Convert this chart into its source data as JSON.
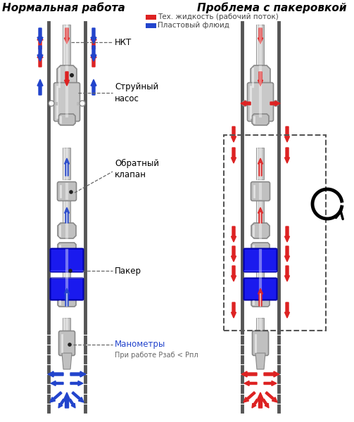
{
  "title_left": "Нормальная работа",
  "title_right": "Проблема с пакеровкой",
  "legend_label1": "Тех. жидкость (рабочий поток)",
  "legend_label2": "Пластовый флюид",
  "label_nkt": "НКТ",
  "label_pump": "Струйный\nнасос",
  "label_valve": "Обратный\nклапан",
  "label_packer": "Пакер",
  "label_manometr": "Манометры",
  "label_sub": "При работе Рзаб < Рпл",
  "bg_color": "#ffffff",
  "red_arrow": "#dd2222",
  "blue_arrow": "#2244cc",
  "casing_color": "#555555",
  "pipe_fill": "#c8c8c8",
  "packer_color": "#1a1aee",
  "title_fontsize": 11,
  "label_fontsize": 8.5,
  "legend_fontsize": 7.5
}
